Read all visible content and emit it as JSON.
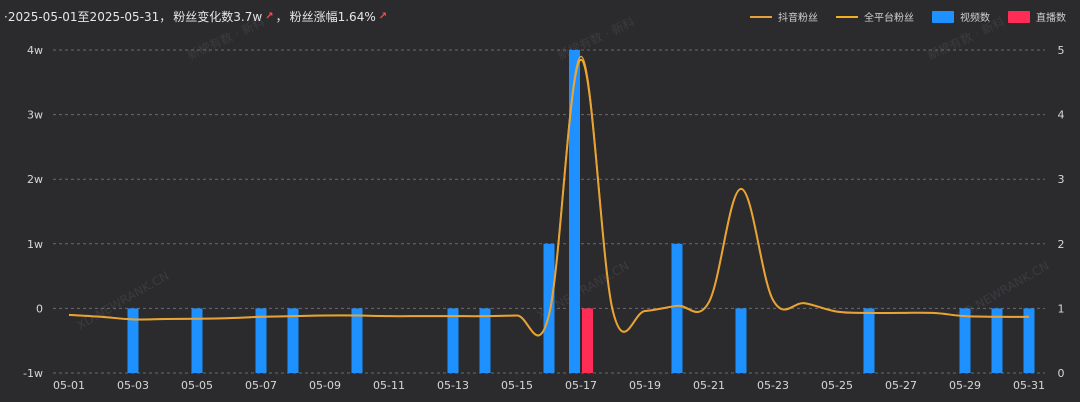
{
  "summary": {
    "prefix": "·2025-05-01至2025-05-31，",
    "fans_change_label": "粉丝变化数3.7w",
    "arrow": "↗",
    "sep": "，",
    "fans_rate_label": "粉丝涨幅1.64%"
  },
  "legend": [
    {
      "name": "抖音粉丝",
      "color": "#e8a13a",
      "kind": "line"
    },
    {
      "name": "全平台粉丝",
      "color": "#f2b021",
      "kind": "line"
    },
    {
      "name": "视频数",
      "color": "#1e90ff",
      "kind": "rect"
    },
    {
      "name": "直播数",
      "color": "#ff2d55",
      "kind": "rect"
    }
  ],
  "watermarks": [
    "新榜有数 · 新科",
    "XD.NEWRANK.CN"
  ],
  "chart_data": {
    "type": "bar+line",
    "x": [
      "05-01",
      "05-02",
      "05-03",
      "05-04",
      "05-05",
      "05-06",
      "05-07",
      "05-08",
      "05-09",
      "05-10",
      "05-11",
      "05-12",
      "05-13",
      "05-14",
      "05-15",
      "05-16",
      "05-17",
      "05-18",
      "05-19",
      "05-20",
      "05-21",
      "05-22",
      "05-23",
      "05-24",
      "05-25",
      "05-26",
      "05-27",
      "05-28",
      "05-29",
      "05-30",
      "05-31"
    ],
    "x_tick_labels": [
      "05-01",
      "05-03",
      "05-05",
      "05-07",
      "05-09",
      "05-11",
      "05-13",
      "05-15",
      "05-17",
      "05-19",
      "05-21",
      "05-23",
      "05-25",
      "05-27",
      "05-29",
      "05-31"
    ],
    "y_left": {
      "ticks": [
        "-1w",
        "0",
        "1w",
        "2w",
        "3w",
        "4w"
      ],
      "min": -10000,
      "max": 40000
    },
    "y_right": {
      "ticks": [
        "0",
        "1",
        "2",
        "3",
        "4",
        "5"
      ],
      "min": 0,
      "max": 5
    },
    "series": [
      {
        "name": "视频数",
        "axis": "right",
        "type": "bar",
        "color": "#1e90ff",
        "values": [
          0,
          0,
          1,
          0,
          1,
          0,
          1,
          1,
          0,
          1,
          0,
          0,
          1,
          1,
          0,
          2,
          5,
          0,
          0,
          2,
          0,
          1,
          0,
          0,
          0,
          1,
          0,
          0,
          1,
          1,
          1
        ]
      },
      {
        "name": "直播数",
        "axis": "right",
        "type": "bar",
        "color": "#ff2d55",
        "values": [
          0,
          0,
          0,
          0,
          0,
          0,
          0,
          0,
          0,
          0,
          0,
          0,
          0,
          0,
          0,
          0,
          1,
          0,
          0,
          0,
          0,
          0,
          0,
          0,
          0,
          0,
          0,
          0,
          0,
          0,
          0
        ]
      },
      {
        "name": "全平台粉丝",
        "axis": "left",
        "type": "line",
        "color": "#f2b021",
        "values": [
          -1000,
          -1300,
          -1700,
          -1650,
          -1600,
          -1500,
          -1300,
          -1200,
          -1100,
          -1100,
          -1200,
          -1200,
          -1200,
          -1200,
          -1100,
          -1000,
          38500,
          -500,
          -400,
          400,
          1000,
          18500,
          1300,
          800,
          -500,
          -700,
          -700,
          -700,
          -1200,
          -1300,
          -1300
        ]
      },
      {
        "name": "抖音粉丝",
        "axis": "left",
        "type": "line",
        "color": "#e8a13a",
        "values": [
          -1000,
          -1300,
          -1700,
          -1650,
          -1600,
          -1500,
          -1300,
          -1200,
          -1100,
          -1100,
          -1200,
          -1200,
          -1200,
          -1200,
          -1100,
          -1000,
          39000,
          -500,
          -400,
          400,
          1000,
          18500,
          1300,
          800,
          -500,
          -700,
          -700,
          -700,
          -1200,
          -1300,
          -1300
        ]
      }
    ]
  }
}
